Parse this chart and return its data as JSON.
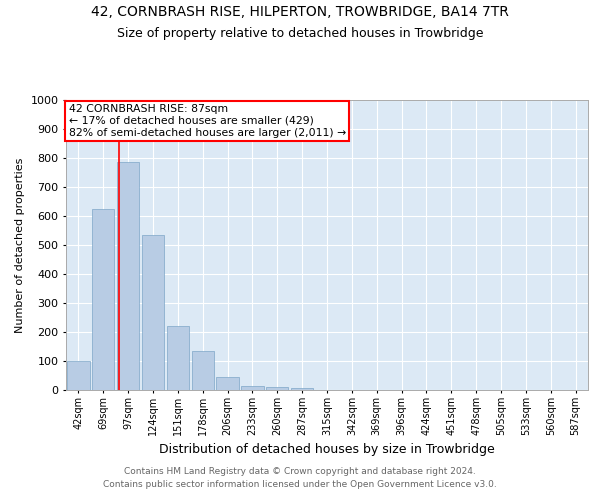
{
  "title": "42, CORNBRASH RISE, HILPERTON, TROWBRIDGE, BA14 7TR",
  "subtitle": "Size of property relative to detached houses in Trowbridge",
  "xlabel": "Distribution of detached houses by size in Trowbridge",
  "ylabel": "Number of detached properties",
  "footer_line1": "Contains HM Land Registry data © Crown copyright and database right 2024.",
  "footer_line2": "Contains public sector information licensed under the Open Government Licence v3.0.",
  "bar_labels": [
    "42sqm",
    "69sqm",
    "97sqm",
    "124sqm",
    "151sqm",
    "178sqm",
    "206sqm",
    "233sqm",
    "260sqm",
    "287sqm",
    "315sqm",
    "342sqm",
    "369sqm",
    "396sqm",
    "424sqm",
    "451sqm",
    "478sqm",
    "505sqm",
    "533sqm",
    "560sqm",
    "587sqm"
  ],
  "bar_values": [
    100,
    625,
    785,
    535,
    220,
    135,
    45,
    15,
    10,
    8,
    0,
    0,
    0,
    0,
    0,
    0,
    0,
    0,
    0,
    0,
    0
  ],
  "bar_color": "#b8cce4",
  "bar_edge_color": "#7da6c8",
  "annotation_line1": "42 CORNBRASH RISE: 87sqm",
  "annotation_line2": "← 17% of detached houses are smaller (429)",
  "annotation_line3": "82% of semi-detached houses are larger (2,011) →",
  "vline_x_index": 1.64,
  "ylim": [
    0,
    1000
  ],
  "yticks": [
    0,
    100,
    200,
    300,
    400,
    500,
    600,
    700,
    800,
    900,
    1000
  ],
  "plot_bg_color": "#dce9f5"
}
